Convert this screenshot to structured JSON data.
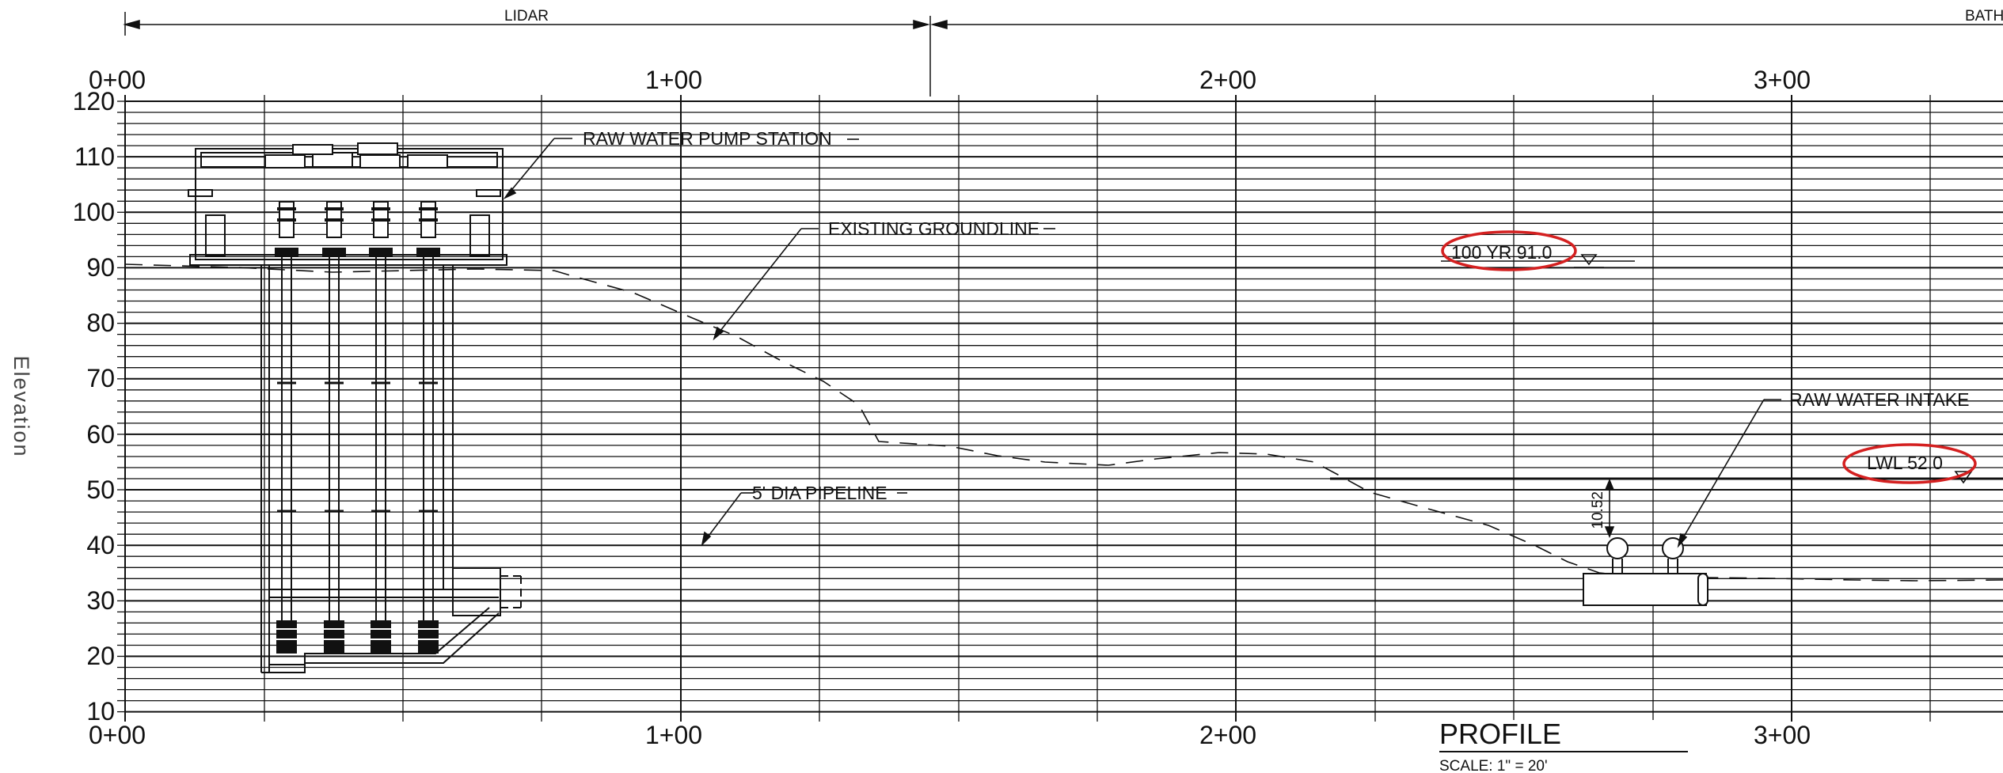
{
  "header": {
    "survey_left": "LIDAR",
    "survey_right": "BATH"
  },
  "axis": {
    "ylabel": "Elevation",
    "elevation_ticks": [
      "120",
      "110",
      "100",
      "90",
      "80",
      "70",
      "60",
      "50",
      "40",
      "30",
      "20",
      "10"
    ],
    "stations_top": [
      "0+00",
      "1+00",
      "2+00",
      "3+00"
    ],
    "stations_bottom": [
      "0+00",
      "1+00",
      "2+00",
      "3+00"
    ]
  },
  "callouts": {
    "pump_station": "RAW WATER PUMP STATION",
    "groundline": "EXISTING GROUNDLINE",
    "pipeline": "5' DIA PIPELINE",
    "intake": "RAW WATER INTAKE",
    "flood_level": "100 YR 91.0",
    "low_water_level": "LWL 52.0",
    "clearance": "10.52'"
  },
  "footer": {
    "title": "PROFILE",
    "scale": "SCALE: 1\" = 20'"
  },
  "colors": {
    "line": "#111111",
    "highlight": "#d42020"
  }
}
